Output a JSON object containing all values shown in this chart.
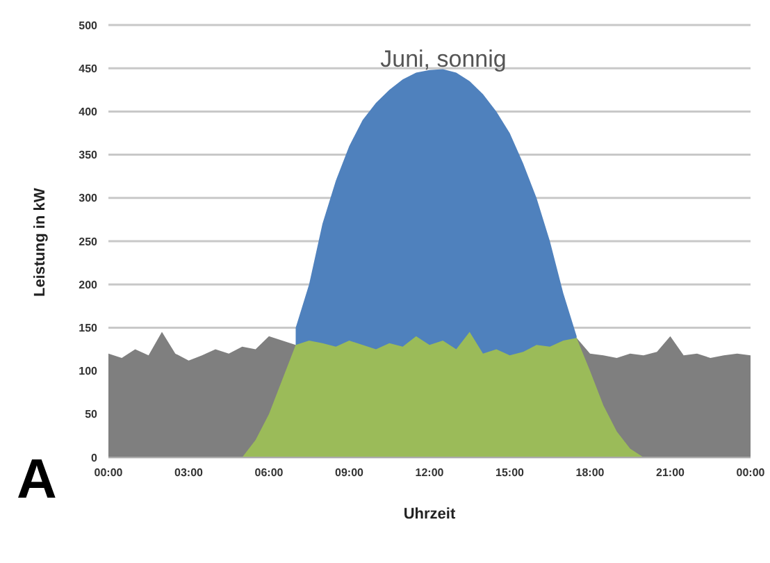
{
  "chart_data": {
    "type": "area",
    "title": "Juni, sonnig",
    "xlabel": "Uhrzeit",
    "ylabel": "Leistung in kW",
    "annotations": [
      "A"
    ],
    "grid": "y",
    "x": [
      0,
      0.5,
      1,
      1.5,
      2,
      2.5,
      3,
      3.5,
      4,
      4.5,
      5,
      5.5,
      6,
      6.5,
      7,
      7.5,
      8,
      8.5,
      9,
      9.5,
      10,
      10.5,
      11,
      11.5,
      12,
      12.5,
      13,
      13.5,
      14,
      14.5,
      15,
      15.5,
      16,
      16.5,
      17,
      17.5,
      18,
      18.5,
      19,
      19.5,
      20,
      20.5,
      21,
      21.5,
      22,
      22.5,
      23,
      23.5,
      24
    ],
    "series": [
      {
        "color": "#7f7f7f",
        "values": [
          120,
          115,
          125,
          118,
          145,
          120,
          112,
          118,
          125,
          120,
          128,
          125,
          140,
          135,
          130,
          null,
          null,
          null,
          null,
          null,
          null,
          null,
          null,
          null,
          null,
          null,
          null,
          null,
          null,
          null,
          null,
          null,
          null,
          null,
          null,
          138,
          120,
          118,
          115,
          120,
          118,
          122,
          140,
          118,
          120,
          115,
          118,
          120,
          118
        ]
      },
      {
        "color": "#4f81bd",
        "values": [
          null,
          null,
          null,
          null,
          null,
          null,
          null,
          null,
          null,
          null,
          null,
          null,
          null,
          null,
          150,
          200,
          270,
          320,
          360,
          390,
          410,
          425,
          437,
          445,
          448,
          449,
          445,
          435,
          420,
          400,
          375,
          340,
          300,
          250,
          190,
          140,
          null,
          null,
          null,
          null,
          null,
          null,
          null,
          null,
          null,
          null,
          null,
          null,
          null
        ]
      },
      {
        "color": "#9bbb59",
        "values": [
          null,
          null,
          null,
          null,
          null,
          null,
          null,
          null,
          null,
          null,
          0,
          20,
          50,
          90,
          130,
          135,
          132,
          128,
          135,
          130,
          125,
          132,
          128,
          140,
          130,
          135,
          125,
          145,
          120,
          125,
          118,
          122,
          130,
          128,
          135,
          138,
          100,
          60,
          30,
          10,
          0,
          null,
          null,
          null,
          null,
          null,
          null,
          null,
          null
        ]
      }
    ],
    "xlim": [
      0,
      24
    ],
    "xticks": [
      {
        "value": 0,
        "label": "00:00"
      },
      {
        "value": 3,
        "label": "03:00"
      },
      {
        "value": 6,
        "label": "06:00"
      },
      {
        "value": 9,
        "label": "09:00"
      },
      {
        "value": 12,
        "label": "12:00"
      },
      {
        "value": 15,
        "label": "15:00"
      },
      {
        "value": 18,
        "label": "18:00"
      },
      {
        "value": 21,
        "label": "21:00"
      },
      {
        "value": 24,
        "label": "00:00"
      }
    ],
    "ylim": [
      0,
      500
    ],
    "yticks": [
      0,
      50,
      100,
      150,
      200,
      250,
      300,
      350,
      400,
      450,
      500
    ]
  }
}
